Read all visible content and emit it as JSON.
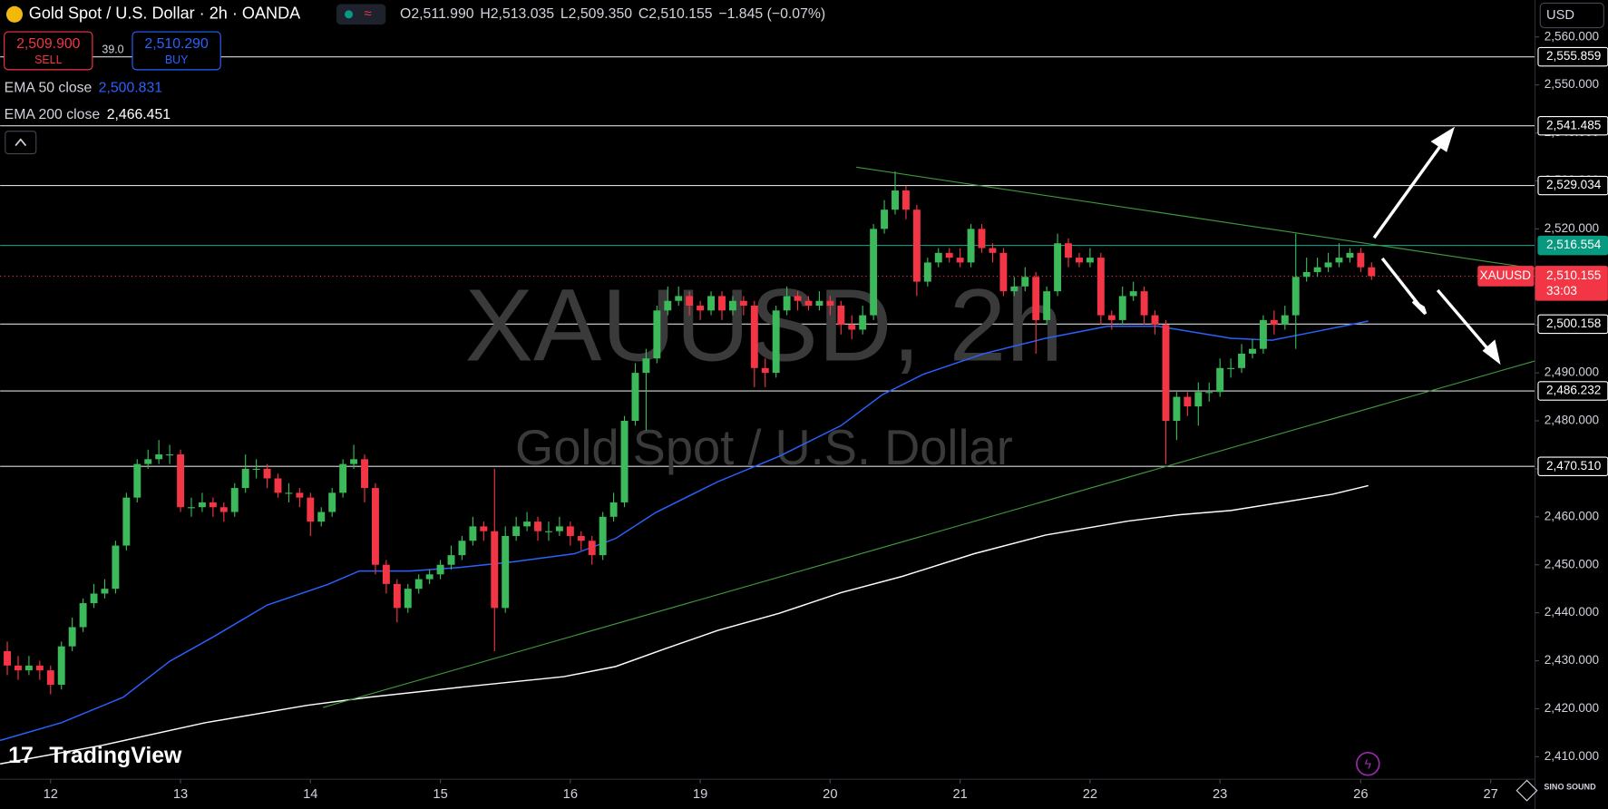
{
  "header": {
    "title": "Gold Spot / U.S. Dollar · 2h · OANDA",
    "ohlc": [
      {
        "key": "O",
        "value": "2,511.990"
      },
      {
        "key": "H",
        "value": "2,513.035"
      },
      {
        "key": "L",
        "value": "2,509.350"
      },
      {
        "key": "C",
        "value": "2,510.155"
      }
    ],
    "change": "−1.845 (−0.07%)"
  },
  "trade": {
    "sell_price": "2,509.900",
    "sell": "SELL",
    "spread": "39.0",
    "buy_price": "2,510.290",
    "buy": "BUY"
  },
  "currency": "USD",
  "watermark": {
    "symbol": "XAUUSD, 2h",
    "name": "Gold Spot / U.S. Dollar"
  },
  "branding": {
    "logo": "TradingView",
    "corner": "SINO SOUND"
  },
  "chart_data": {
    "type": "candlestick",
    "up_color": "#3cb95a",
    "down_color": "#f23645",
    "xlim": [
      -0.66,
      141.1
    ],
    "xticks": [
      {
        "value": 4,
        "label": "12"
      },
      {
        "value": 16,
        "label": "13"
      },
      {
        "value": 28,
        "label": "14"
      },
      {
        "value": 40,
        "label": "15"
      },
      {
        "value": 52,
        "label": "16"
      },
      {
        "value": 64,
        "label": "19"
      },
      {
        "value": 76,
        "label": "20"
      },
      {
        "value": 88,
        "label": "21"
      },
      {
        "value": 100,
        "label": "22"
      },
      {
        "value": 112,
        "label": "23"
      },
      {
        "value": 125,
        "label": "26"
      },
      {
        "value": 137,
        "label": "27"
      }
    ],
    "ylim": [
      2405.3,
      2567.7
    ],
    "yticks": [
      {
        "value": 2560,
        "label": "2,560.000"
      },
      {
        "value": 2550,
        "label": "2,550.000"
      },
      {
        "value": 2540,
        "label": "2,540.000"
      },
      {
        "value": 2530,
        "label": "2,530.000"
      },
      {
        "value": 2520,
        "label": "2,520.000"
      },
      {
        "value": 2510,
        "label": "2,510.000"
      },
      {
        "value": 2500,
        "label": "2,500.000"
      },
      {
        "value": 2490,
        "label": "2,490.000"
      },
      {
        "value": 2480,
        "label": "2,480.000"
      },
      {
        "value": 2470,
        "label": "2,470.000"
      },
      {
        "value": 2460,
        "label": "2,460.000"
      },
      {
        "value": 2450,
        "label": "2,450.000"
      },
      {
        "value": 2440,
        "label": "2,440.000"
      },
      {
        "value": 2430,
        "label": "2,430.000"
      },
      {
        "value": 2420,
        "label": "2,420.000"
      },
      {
        "value": 2410,
        "label": "2,410.000"
      }
    ],
    "open": [
      2432,
      2429,
      2428,
      2429,
      2428,
      2425,
      2433,
      2437,
      2442,
      2444,
      2445,
      2454,
      2464,
      2471,
      2472,
      2473,
      2473,
      2462,
      2462,
      2463,
      2462,
      2461,
      2466,
      2470,
      2470,
      2468,
      2465,
      2465,
      2464,
      2459,
      2461,
      2465,
      2471,
      2472,
      2466,
      2450,
      2446,
      2441,
      2445,
      2447,
      2448,
      2450,
      2452,
      2455,
      2458,
      2457,
      2441,
      2456,
      2458,
      2459,
      2457,
      2457,
      2458,
      2456,
      2455,
      2452,
      2460,
      2463,
      2480,
      2490,
      2493,
      2503,
      2505,
      2506,
      2504,
      2503,
      2506,
      2503,
      2505,
      2504,
      2491,
      2490,
      2503,
      2506,
      2505,
      2504,
      2505,
      2504,
      2500,
      2499,
      2502,
      2520,
      2524,
      2528,
      2524,
      2509,
      2513,
      2515,
      2514,
      2513,
      2520,
      2516,
      2515,
      2507,
      2508,
      2510,
      2501,
      2507,
      2517,
      2514,
      2513,
      2514,
      2502,
      2501,
      2506,
      2507,
      2502,
      2500,
      2480,
      2485,
      2483,
      2486,
      2486,
      2491,
      2491,
      2494,
      2495,
      2501,
      2500,
      2502,
      2510,
      2511,
      2512,
      2513,
      2514,
      2515,
      2511.99
    ],
    "high": [
      2434,
      2431,
      2431,
      2430,
      2429,
      2434,
      2439,
      2443,
      2446,
      2447,
      2455,
      2465,
      2472,
      2474,
      2476,
      2475,
      2474,
      2464,
      2465,
      2464,
      2463,
      2467,
      2473,
      2472,
      2471,
      2469,
      2467,
      2466,
      2465,
      2462,
      2466,
      2472,
      2475,
      2473,
      2467,
      2451,
      2447,
      2446,
      2448,
      2449,
      2451,
      2454,
      2456,
      2460,
      2459,
      2470,
      2458,
      2460,
      2461,
      2460,
      2459,
      2460,
      2459,
      2457,
      2456,
      2461,
      2465,
      2481,
      2492,
      2495,
      2504,
      2508,
      2508,
      2507,
      2505,
      2507,
      2507,
      2506,
      2506,
      2505,
      2493,
      2504,
      2508,
      2507,
      2506,
      2507,
      2506,
      2505,
      2502,
      2504,
      2521,
      2526,
      2532,
      2529,
      2525,
      2514,
      2516,
      2516,
      2516,
      2521,
      2521,
      2517,
      2516,
      2510,
      2512,
      2511,
      2508,
      2519,
      2518,
      2515,
      2516,
      2515,
      2503,
      2508,
      2509,
      2508,
      2503,
      2501,
      2486,
      2486,
      2488,
      2488,
      2493,
      2493,
      2496,
      2497,
      2502,
      2503,
      2504,
      2519,
      2514,
      2514,
      2515,
      2517,
      2516,
      2516,
      2513.035
    ],
    "low": [
      2427,
      2426,
      2427,
      2426,
      2423,
      2424,
      2432,
      2436,
      2441,
      2443,
      2444,
      2453,
      2463,
      2470,
      2471,
      2471,
      2461,
      2460,
      2461,
      2460,
      2459,
      2460,
      2465,
      2468,
      2466,
      2464,
      2463,
      2462,
      2456,
      2458,
      2460,
      2464,
      2470,
      2463,
      2448,
      2444,
      2438,
      2440,
      2444,
      2446,
      2447,
      2449,
      2451,
      2454,
      2455,
      2432,
      2440,
      2455,
      2457,
      2455,
      2455,
      2456,
      2454,
      2453,
      2450,
      2451,
      2459,
      2462,
      2479,
      2478,
      2492,
      2502,
      2504,
      2502,
      2501,
      2502,
      2501,
      2502,
      2502,
      2487,
      2487,
      2489,
      2502,
      2503,
      2503,
      2503,
      2502,
      2498,
      2497,
      2498,
      2501,
      2519,
      2523,
      2522,
      2506,
      2508,
      2512,
      2513,
      2512,
      2512,
      2515,
      2513,
      2506,
      2506,
      2507,
      2494,
      2500,
      2506,
      2512,
      2512,
      2512,
      2500,
      2499,
      2500,
      2505,
      2500,
      2498,
      2471,
      2476,
      2481,
      2479,
      2484,
      2485,
      2489,
      2490,
      2493,
      2494,
      2498,
      2499,
      2495,
      2509,
      2510,
      2511,
      2512,
      2513,
      2511,
      2509.35
    ],
    "close": [
      2429,
      2428,
      2429,
      2428,
      2425,
      2433,
      2437,
      2442,
      2444,
      2445,
      2454,
      2464,
      2471,
      2472,
      2473,
      2473,
      2462,
      2462,
      2463,
      2462,
      2461,
      2466,
      2470,
      2470,
      2468,
      2465,
      2465,
      2464,
      2459,
      2461,
      2465,
      2471,
      2472,
      2466,
      2450,
      2446,
      2441,
      2445,
      2447,
      2448,
      2450,
      2452,
      2455,
      2458,
      2457,
      2441,
      2456,
      2458,
      2459,
      2457,
      2457,
      2458,
      2456,
      2455,
      2452,
      2460,
      2463,
      2480,
      2490,
      2493,
      2503,
      2505,
      2506,
      2504,
      2503,
      2506,
      2503,
      2505,
      2504,
      2491,
      2490,
      2503,
      2506,
      2505,
      2504,
      2505,
      2504,
      2500,
      2499,
      2502,
      2520,
      2524,
      2528,
      2524,
      2509,
      2513,
      2515,
      2514,
      2513,
      2520,
      2516,
      2515,
      2507,
      2508,
      2510,
      2501,
      2507,
      2517,
      2514,
      2513,
      2514,
      2502,
      2501,
      2506,
      2507,
      2502,
      2500,
      2480,
      2485,
      2483,
      2486,
      2486,
      2491,
      2491,
      2494,
      2495,
      2501,
      2500,
      2502,
      2510,
      2511,
      2512,
      2513,
      2514,
      2515,
      2512,
      2510.155
    ],
    "lines": [
      {
        "name": "EMA 50 close",
        "last": "2,500.831",
        "color": "#2962ff",
        "x": [
          -0.66,
          5.0,
          10.7,
          15.0,
          19.2,
          24.0,
          29.6,
          32.5,
          37.2,
          42.0,
          46.7,
          52.4,
          56.2,
          59.9,
          65.6,
          71.3,
          77.0,
          80.8,
          84.6,
          90.2,
          95.9,
          101.6,
          106.3,
          113.0,
          116.8,
          121.5,
          125.7
        ],
        "values": [
          2413.4,
          2417.1,
          2422.4,
          2429.9,
          2435.2,
          2441.6,
          2445.9,
          2448.7,
          2448.7,
          2449.5,
          2450.6,
          2452.3,
          2455.5,
          2460.9,
          2467.3,
          2472.6,
          2479.0,
          2485.4,
          2489.7,
          2494.0,
          2497.2,
          2499.7,
          2499.7,
          2497.2,
          2496.8,
          2498.9,
          2500.8
        ]
      },
      {
        "name": "EMA 200 close",
        "last": "2,466.451",
        "color": "#ffffff",
        "x": [
          -0.66,
          8.8,
          18.3,
          27.7,
          33.4,
          42.0,
          51.4,
          56.2,
          60.9,
          65.6,
          71.3,
          77.0,
          82.7,
          89.3,
          95.9,
          103.5,
          108.2,
          113.0,
          117.7,
          122.4,
          125.7
        ],
        "values": [
          2408.5,
          2412.4,
          2417.1,
          2420.7,
          2422.4,
          2424.5,
          2426.7,
          2428.8,
          2432.6,
          2436.3,
          2439.9,
          2444.2,
          2447.6,
          2452.3,
          2456.2,
          2459.1,
          2460.4,
          2461.3,
          2463.0,
          2464.7,
          2466.5
        ]
      }
    ],
    "hlines": [
      {
        "value": 2555.859,
        "label": "2,555.859",
        "color": "#ffffff"
      },
      {
        "value": 2541.485,
        "label": "2,541.485",
        "color": "#ffffff"
      },
      {
        "value": 2529.034,
        "label": "2,529.034",
        "color": "#ffffff"
      },
      {
        "value": 2516.554,
        "label": "2,516.554",
        "color": "#089981"
      },
      {
        "value": 2500.158,
        "label": "2,500.158",
        "color": "#ffffff"
      },
      {
        "value": 2486.232,
        "label": "2,486.232",
        "color": "#ffffff"
      },
      {
        "value": 2470.51,
        "label": "2,470.510",
        "color": "#ffffff"
      }
    ],
    "last_price": {
      "value": 2510.155,
      "label": "2,510.155",
      "symbol": "XAUUSD",
      "countdown": "33:03",
      "color": "#f23645"
    }
  }
}
